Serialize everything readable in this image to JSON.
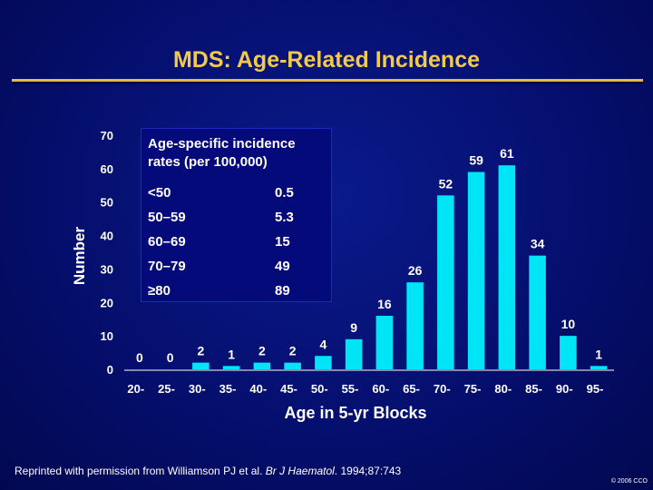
{
  "title": "MDS: Age-Related Incidence",
  "chart_data": {
    "type": "bar",
    "title": "MDS: Age-Related Incidence",
    "xlabel": "Age in 5-yr Blocks",
    "ylabel": "Number",
    "ylim": [
      0,
      70
    ],
    "yticks": [
      0,
      10,
      20,
      30,
      40,
      50,
      60,
      70
    ],
    "categories": [
      "20-",
      "25-",
      "30-",
      "35-",
      "40-",
      "45-",
      "50-",
      "55-",
      "60-",
      "65-",
      "70-",
      "75-",
      "80-",
      "85-",
      "90-",
      "95-"
    ],
    "values": [
      0,
      0,
      2,
      1,
      2,
      2,
      4,
      9,
      16,
      26,
      52,
      59,
      61,
      34,
      10,
      1
    ],
    "bar_color": "#00e5f5"
  },
  "inset": {
    "title": "Age-specific incidence rates (per 100,000)",
    "rows": [
      {
        "label": "<50",
        "value": "0.5"
      },
      {
        "label": "50–59",
        "value": "5.3"
      },
      {
        "label": "60–69",
        "value": "15"
      },
      {
        "label": "70–79",
        "value": "49"
      },
      {
        "label": "≥80",
        "value": "89"
      }
    ]
  },
  "footer": {
    "text_before": "Reprinted with permission from Williamson PJ et al. ",
    "journal": "Br J Haematol",
    "text_after": ". 1994;87:743"
  },
  "copyright": "© 2006 CCO"
}
